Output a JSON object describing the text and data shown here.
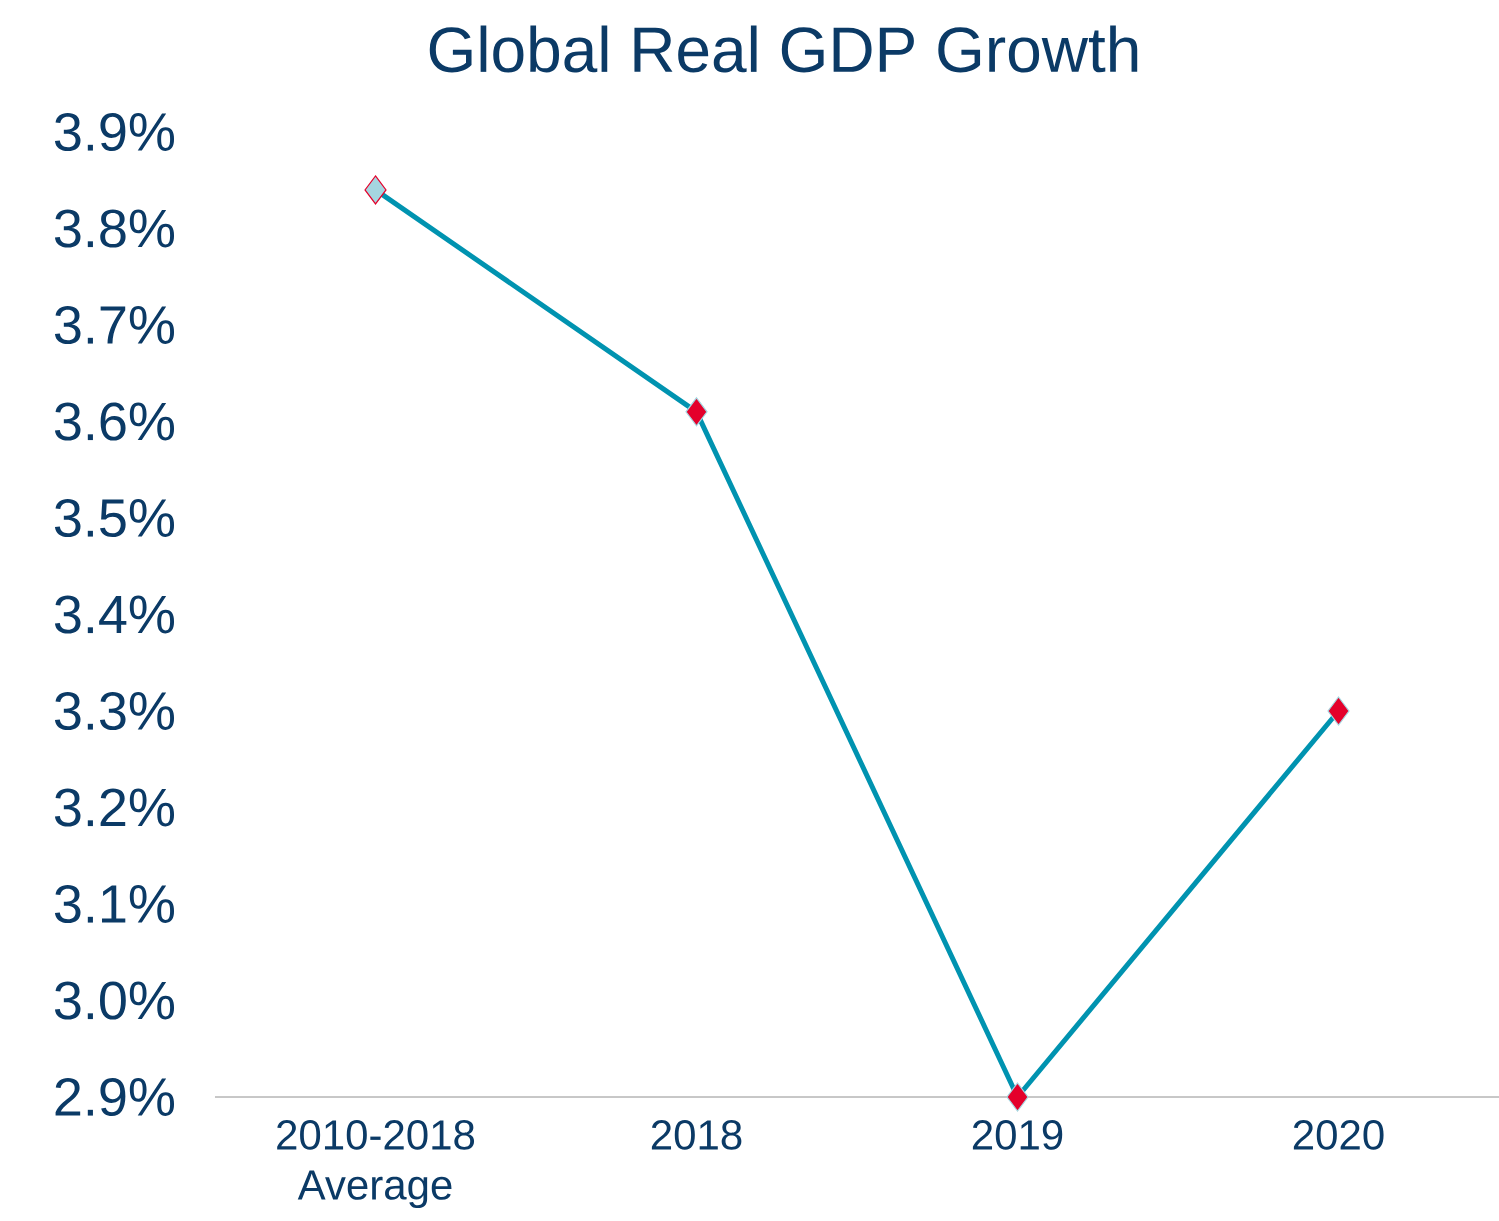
{
  "chart_data": {
    "type": "line",
    "title": "Global Real GDP Growth",
    "categories": [
      "2010-2018\nAverage",
      "2018",
      "2019",
      "2020"
    ],
    "series": [
      {
        "color": "#0093b0",
        "colors": [
          "#a5d6e0",
          "#e4002b",
          "#e4002b",
          "#e4002b"
        ],
        "values": [
          3.84,
          3.61,
          2.9,
          3.3
        ]
      }
    ],
    "ylim": [
      2.9,
      3.9
    ],
    "yticks": [
      {
        "value": 2.9,
        "label": "2.9%"
      },
      {
        "value": 3.0,
        "label": "3.0%"
      },
      {
        "value": 3.1,
        "label": "3.1%"
      },
      {
        "value": 3.2,
        "label": "3.2%"
      },
      {
        "value": 3.3,
        "label": "3.3%"
      },
      {
        "value": 3.4,
        "label": "3.4%"
      },
      {
        "value": 3.5,
        "label": "3.5%"
      },
      {
        "value": 3.6,
        "label": "3.6%"
      },
      {
        "value": 3.7,
        "label": "3.7%"
      },
      {
        "value": 3.8,
        "label": "3.8%"
      },
      {
        "value": 3.9,
        "label": "3.9%"
      }
    ],
    "marker": "diamond",
    "line_style": "solid",
    "grid": false
  }
}
